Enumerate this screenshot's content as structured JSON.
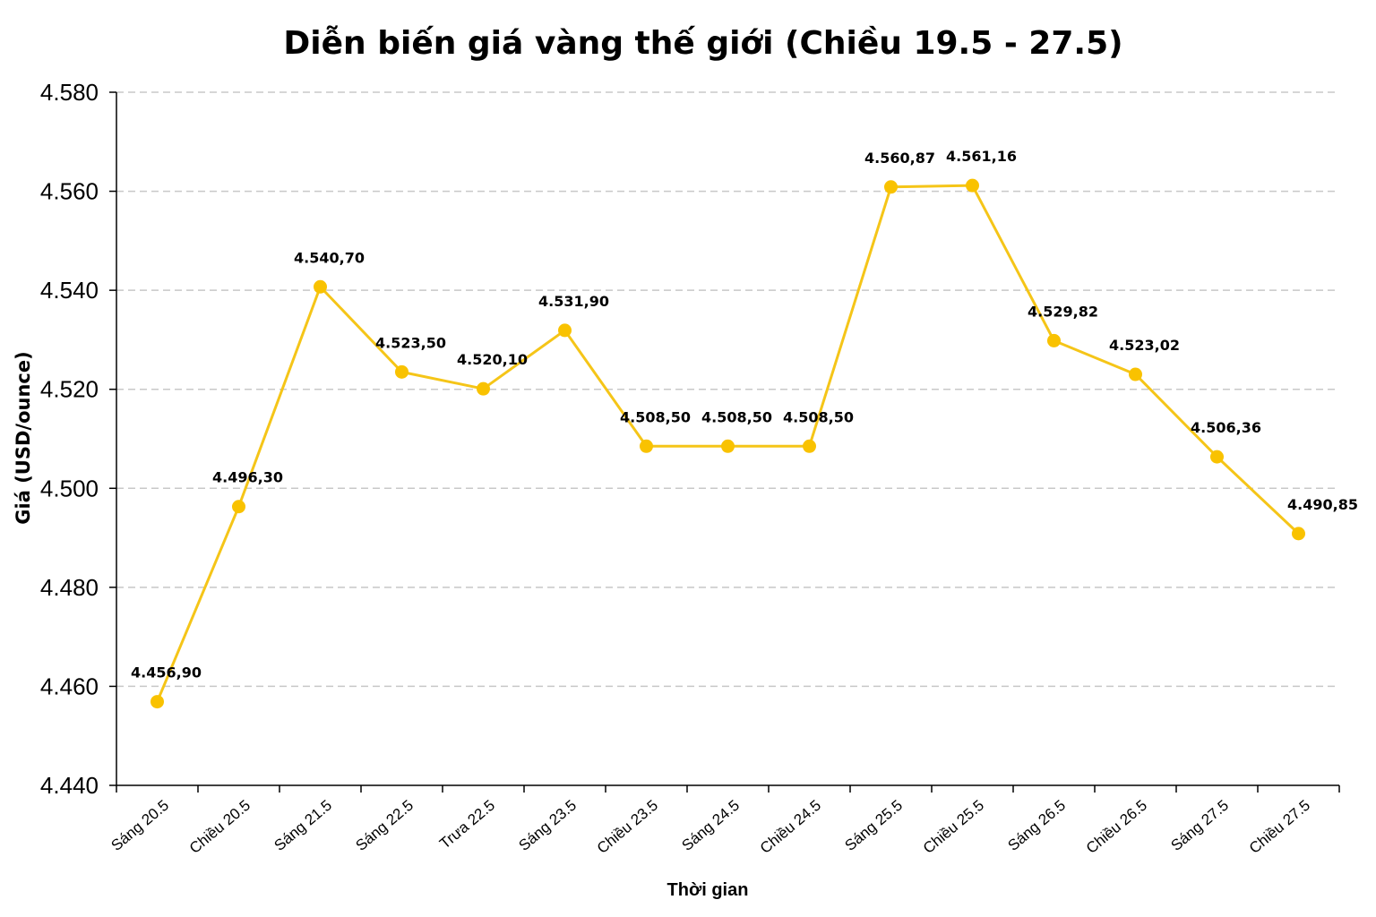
{
  "chart_data": {
    "type": "line",
    "title": "Diễn biến giá vàng thế giới (Chiều 19.5 - 27.5)",
    "xlabel": "Thời gian",
    "ylabel": "Giá (USD/ounce)",
    "ylim": [
      4440,
      4580
    ],
    "yticks": [
      4440,
      4460,
      4480,
      4500,
      4520,
      4540,
      4560,
      4580
    ],
    "ytick_labels": [
      "4.440",
      "4.460",
      "4.480",
      "4.500",
      "4.520",
      "4.540",
      "4.560",
      "4.580"
    ],
    "grid": true,
    "categories": [
      "Sáng 20.5",
      "Chiều 20.5",
      "Sáng 21.5",
      "Sáng 22.5",
      "Trưa 22.5",
      "Sáng 23.5",
      "Chiều 23.5",
      "Sáng 24.5",
      "Chiều 24.5",
      "Sáng 25.5",
      "Chiều 25.5",
      "Sáng 26.5",
      "Chiều 26.5",
      "Sáng 27.5",
      "Chiều 27.5"
    ],
    "series": [
      {
        "values": [
          4456.9,
          4496.3,
          4540.7,
          4523.5,
          4520.1,
          4531.9,
          4508.5,
          4508.5,
          4508.5,
          4560.87,
          4561.16,
          4529.82,
          4523.02,
          4506.36,
          4490.85
        ],
        "labels": [
          "4.456,90",
          "4.496,30",
          "4.540,70",
          "4.523,50",
          "4.520,10",
          "4.531,90",
          "4.508,50",
          "4.508,50",
          "4.508,50",
          "4.560,87",
          "4.561,16",
          "4.529,82",
          "4.523,02",
          "4.506,36",
          "4.490,85"
        ],
        "color": "#F5C518",
        "marker_color": "#F9C200"
      }
    ]
  }
}
